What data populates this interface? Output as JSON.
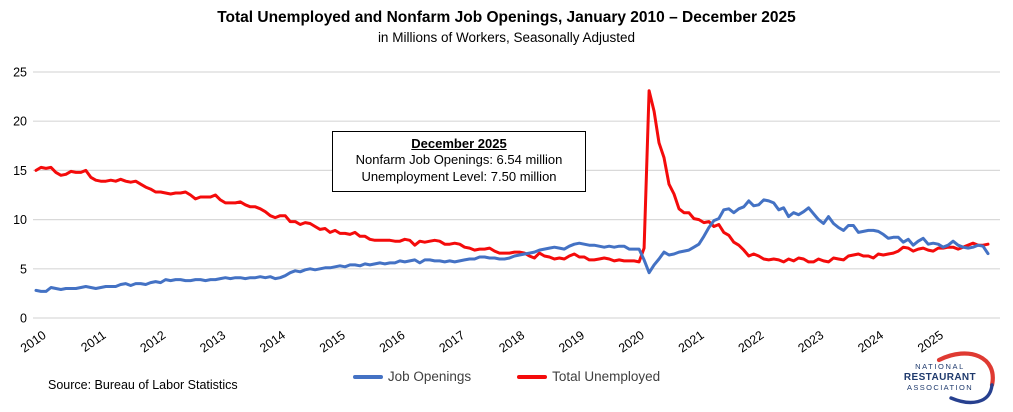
{
  "title": "Total Unemployed and Nonfarm Job Openings, January 2010 – December 2025",
  "subtitle": "in Millions of Workers, Seasonally Adjusted",
  "annotation": {
    "title": "December 2025",
    "line1": "Nonfarm Job Openings: 6.54 million",
    "line2": "Unemployment Level: 7.50 million"
  },
  "legend": {
    "items": [
      {
        "label": "Job Openings",
        "color": "#4472C4"
      },
      {
        "label": "Total Unemployed",
        "color": "#F40B0B"
      }
    ]
  },
  "source": "Source: Bureau of Labor Statistics",
  "logo": {
    "line1": "NATIONAL",
    "line2": "RESTAURANT",
    "line3": "ASSOCIATION",
    "navy": "#1F3A6D",
    "red": "#DF3A32",
    "blue": "#27408F"
  },
  "colors": {
    "job_openings": "#4472C4",
    "total_unemployed": "#F40B0B",
    "gridline": "#D9D9D9",
    "axis_text": "#000000"
  },
  "chart_data": {
    "type": "line",
    "title": "Total Unemployed and Nonfarm Job Openings, January 2010 – December 2025",
    "subtitle": "in Millions of Workers, Seasonally Adjusted",
    "x_start": "2010-01",
    "x_end": "2025-12",
    "frequency": "monthly",
    "x_tick_labels": [
      "2010",
      "2011",
      "2012",
      "2013",
      "2014",
      "2015",
      "2016",
      "2017",
      "2018",
      "2019",
      "2020",
      "2021",
      "2022",
      "2023",
      "2024",
      "2025"
    ],
    "y_ticks": [
      0,
      5,
      10,
      15,
      20,
      25
    ],
    "ylim": [
      0,
      25
    ],
    "ylabel": "Millions of Workers",
    "grid": "horizontal",
    "legend_position": "bottom",
    "series": [
      {
        "name": "Job Openings",
        "color": "#4472C4",
        "values": [
          2.8,
          2.7,
          2.7,
          3.1,
          3.0,
          2.9,
          3.0,
          3.0,
          3.0,
          3.1,
          3.2,
          3.1,
          3.0,
          3.1,
          3.2,
          3.2,
          3.2,
          3.4,
          3.5,
          3.3,
          3.5,
          3.5,
          3.4,
          3.6,
          3.7,
          3.6,
          3.9,
          3.8,
          3.9,
          3.9,
          3.8,
          3.8,
          3.9,
          3.9,
          3.8,
          3.9,
          3.9,
          4.0,
          4.1,
          4.0,
          4.1,
          4.1,
          4.0,
          4.1,
          4.1,
          4.2,
          4.1,
          4.2,
          4.0,
          4.1,
          4.3,
          4.6,
          4.8,
          4.7,
          4.9,
          5.0,
          4.9,
          5.0,
          5.1,
          5.1,
          5.2,
          5.3,
          5.2,
          5.4,
          5.4,
          5.3,
          5.5,
          5.4,
          5.5,
          5.6,
          5.5,
          5.6,
          5.6,
          5.8,
          5.7,
          5.8,
          5.9,
          5.6,
          5.9,
          5.9,
          5.8,
          5.8,
          5.7,
          5.8,
          5.7,
          5.8,
          5.9,
          6.0,
          6.0,
          6.2,
          6.2,
          6.1,
          6.1,
          6.0,
          6.0,
          6.1,
          6.3,
          6.4,
          6.5,
          6.6,
          6.7,
          6.9,
          7.0,
          7.1,
          7.2,
          7.1,
          7.0,
          7.3,
          7.5,
          7.6,
          7.5,
          7.4,
          7.4,
          7.3,
          7.2,
          7.3,
          7.2,
          7.3,
          7.3,
          7.0,
          7.0,
          7.0,
          5.9,
          4.6,
          5.4,
          6.0,
          6.7,
          6.4,
          6.5,
          6.7,
          6.8,
          6.9,
          7.2,
          7.5,
          8.3,
          9.2,
          9.9,
          10.1,
          11.0,
          11.1,
          10.7,
          11.1,
          11.3,
          11.9,
          11.4,
          11.5,
          12.0,
          11.9,
          11.7,
          11.0,
          11.2,
          10.3,
          10.7,
          10.5,
          10.8,
          11.2,
          10.6,
          10.0,
          9.6,
          10.3,
          9.6,
          9.2,
          8.9,
          9.4,
          9.4,
          8.7,
          8.8,
          8.9,
          8.9,
          8.8,
          8.5,
          8.1,
          8.2,
          8.2,
          7.7,
          8.0,
          7.4,
          7.8,
          8.1,
          7.5,
          7.6,
          7.5,
          7.2,
          7.4,
          7.8,
          7.4,
          7.2,
          7.1,
          7.2,
          7.4,
          7.3,
          6.54
        ]
      },
      {
        "name": "Total Unemployed",
        "color": "#F40B0B",
        "values": [
          15.0,
          15.3,
          15.2,
          15.3,
          14.8,
          14.5,
          14.6,
          14.9,
          14.8,
          14.8,
          15.0,
          14.3,
          14.0,
          13.9,
          13.9,
          14.0,
          13.9,
          14.1,
          13.9,
          13.8,
          13.9,
          13.6,
          13.3,
          13.1,
          12.8,
          12.8,
          12.7,
          12.6,
          12.7,
          12.7,
          12.8,
          12.5,
          12.1,
          12.3,
          12.3,
          12.3,
          12.5,
          12.0,
          11.7,
          11.7,
          11.7,
          11.8,
          11.5,
          11.3,
          11.3,
          11.1,
          10.8,
          10.4,
          10.2,
          10.4,
          10.4,
          9.8,
          9.8,
          9.5,
          9.7,
          9.6,
          9.3,
          9.0,
          9.1,
          8.7,
          8.9,
          8.6,
          8.6,
          8.5,
          8.7,
          8.3,
          8.3,
          8.0,
          7.9,
          7.9,
          7.9,
          7.9,
          7.8,
          7.8,
          8.0,
          7.9,
          7.4,
          7.8,
          7.7,
          7.8,
          7.9,
          7.8,
          7.5,
          7.5,
          7.6,
          7.5,
          7.2,
          7.1,
          6.9,
          7.0,
          7.0,
          7.1,
          6.8,
          6.6,
          6.6,
          6.6,
          6.7,
          6.7,
          6.6,
          6.3,
          6.1,
          6.6,
          6.3,
          6.2,
          6.0,
          6.1,
          6.0,
          6.3,
          6.5,
          6.2,
          6.2,
          5.9,
          5.9,
          6.0,
          6.1,
          6.0,
          5.8,
          5.9,
          5.8,
          5.8,
          5.8,
          5.7,
          7.1,
          23.1,
          21.0,
          17.8,
          16.3,
          13.6,
          12.6,
          11.1,
          10.7,
          10.7,
          10.1,
          10.0,
          9.7,
          9.8,
          9.3,
          9.5,
          8.7,
          8.4,
          7.7,
          7.4,
          6.9,
          6.3,
          6.5,
          6.3,
          6.0,
          5.9,
          6.0,
          5.9,
          5.7,
          6.0,
          5.8,
          6.1,
          6.0,
          5.7,
          5.7,
          6.0,
          5.8,
          5.7,
          6.1,
          6.0,
          5.9,
          6.3,
          6.4,
          6.5,
          6.3,
          6.3,
          6.1,
          6.5,
          6.4,
          6.5,
          6.6,
          6.8,
          7.2,
          7.1,
          6.8,
          7.0,
          7.1,
          6.9,
          6.8,
          7.1,
          7.1,
          7.2,
          7.2,
          7.0,
          7.2,
          7.4,
          7.6,
          7.4,
          7.4,
          7.5
        ]
      }
    ],
    "latest_values": {
      "job_openings": 6.54,
      "total_unemployed": 7.5
    }
  }
}
